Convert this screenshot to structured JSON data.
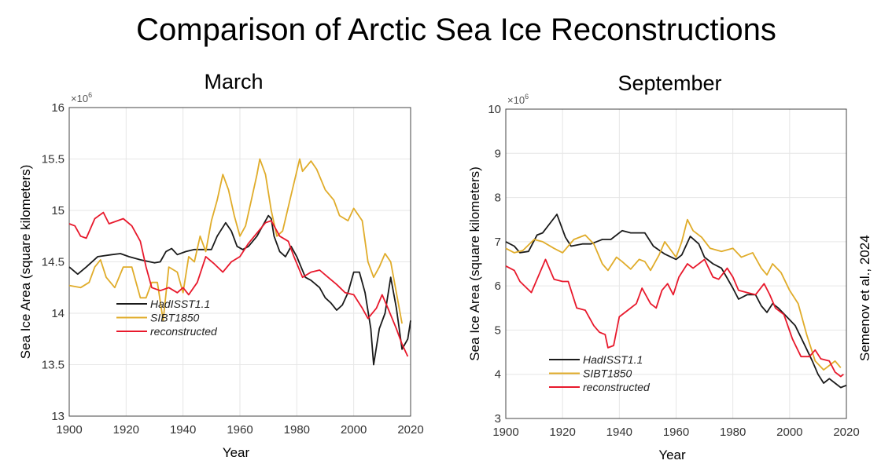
{
  "title": "Comparison of Arctic Sea Ice Reconstructions",
  "credit": "Semenov et al., 2024",
  "colors": {
    "HadISST1.1": "#1a1a1a",
    "SIBT1850": "#e0ac2a",
    "reconstructed": "#e8192c",
    "grid": "#e6e6e6"
  },
  "chart_data": [
    {
      "type": "line",
      "title": "March",
      "xlabel": "Year",
      "ylabel": "Sea Ice Area (square kilometers)",
      "y_multiplier": "×10^6",
      "xlim": [
        1900,
        2020
      ],
      "ylim": [
        13,
        16
      ],
      "xticks": [
        1900,
        1920,
        1940,
        1960,
        1980,
        2000,
        2020
      ],
      "yticks": [
        13,
        13.5,
        14,
        14.5,
        15,
        15.5,
        16
      ],
      "grid": true,
      "legend": "bottom-left",
      "series": [
        {
          "name": "HadISST1.1",
          "x": [
            1900,
            1903,
            1906,
            1910,
            1915,
            1918,
            1921,
            1925,
            1930,
            1932,
            1934,
            1936,
            1938,
            1941,
            1944,
            1950,
            1952,
            1955,
            1957,
            1959,
            1961,
            1963,
            1966,
            1968,
            1970,
            1971,
            1972,
            1974,
            1976,
            1978,
            1980,
            1983,
            1985,
            1988,
            1990,
            1992,
            1994,
            1996,
            1998,
            2000,
            2002,
            2004,
            2006,
            2007,
            2009,
            2011,
            2013,
            2015,
            2017,
            2019,
            2020
          ],
          "y": [
            14.45,
            14.38,
            14.45,
            14.55,
            14.57,
            14.58,
            14.55,
            14.52,
            14.49,
            14.5,
            14.6,
            14.63,
            14.57,
            14.6,
            14.62,
            14.62,
            14.75,
            14.88,
            14.8,
            14.65,
            14.62,
            14.65,
            14.75,
            14.85,
            14.95,
            14.92,
            14.75,
            14.6,
            14.55,
            14.65,
            14.55,
            14.35,
            14.32,
            14.25,
            14.15,
            14.1,
            14.03,
            14.08,
            14.2,
            14.4,
            14.4,
            14.2,
            13.85,
            13.5,
            13.85,
            14.0,
            14.35,
            14.05,
            13.65,
            13.75,
            13.93
          ]
        },
        {
          "name": "SIBT1850",
          "x": [
            1900,
            1904,
            1907,
            1909,
            1911,
            1913,
            1916,
            1919,
            1922,
            1925,
            1927,
            1929,
            1931,
            1933,
            1935,
            1938,
            1940,
            1942,
            1944,
            1946,
            1948,
            1950,
            1952,
            1954,
            1956,
            1958,
            1960,
            1962,
            1964,
            1966,
            1967,
            1969,
            1971,
            1973,
            1975,
            1978,
            1981,
            1982,
            1985,
            1987,
            1990,
            1993,
            1995,
            1998,
            2000,
            2003,
            2005,
            2007,
            2009,
            2011,
            2013,
            2015,
            2017
          ],
          "y": [
            14.27,
            14.25,
            14.3,
            14.45,
            14.52,
            14.35,
            14.25,
            14.45,
            14.45,
            14.15,
            14.15,
            14.3,
            14.3,
            13.93,
            14.45,
            14.4,
            14.2,
            14.55,
            14.5,
            14.75,
            14.6,
            14.9,
            15.1,
            15.35,
            15.2,
            14.95,
            14.75,
            14.85,
            15.1,
            15.35,
            15.5,
            15.35,
            15.0,
            14.75,
            14.8,
            15.15,
            15.5,
            15.38,
            15.48,
            15.4,
            15.2,
            15.1,
            14.95,
            14.9,
            15.02,
            14.9,
            14.5,
            14.35,
            14.45,
            14.58,
            14.5,
            14.2,
            13.9
          ]
        },
        {
          "name": "reconstructed",
          "x": [
            1900,
            1902,
            1904,
            1906,
            1909,
            1912,
            1914,
            1917,
            1919,
            1922,
            1925,
            1927,
            1929,
            1932,
            1935,
            1938,
            1940,
            1942,
            1945,
            1948,
            1951,
            1954,
            1957,
            1960,
            1963,
            1966,
            1969,
            1971,
            1974,
            1977,
            1979,
            1982,
            1985,
            1988,
            1991,
            1994,
            1997,
            2000,
            2003,
            2005,
            2008,
            2010,
            2012,
            2015,
            2017,
            2019
          ],
          "y": [
            14.87,
            14.85,
            14.75,
            14.73,
            14.92,
            14.98,
            14.87,
            14.9,
            14.92,
            14.85,
            14.7,
            14.45,
            14.25,
            14.22,
            14.25,
            14.2,
            14.25,
            14.18,
            14.3,
            14.55,
            14.48,
            14.4,
            14.5,
            14.55,
            14.68,
            14.78,
            14.88,
            14.9,
            14.75,
            14.7,
            14.55,
            14.35,
            14.4,
            14.42,
            14.35,
            14.28,
            14.2,
            14.18,
            14.05,
            13.95,
            14.05,
            14.18,
            14.05,
            13.85,
            13.7,
            13.58
          ]
        }
      ]
    },
    {
      "type": "line",
      "title": "September",
      "xlabel": "Year",
      "ylabel": "Sea Ice Area (square kilometers)",
      "y_multiplier": "×10^6",
      "xlim": [
        1900,
        2020
      ],
      "ylim": [
        3,
        10
      ],
      "xticks": [
        1900,
        1920,
        1940,
        1960,
        1980,
        2000,
        2020
      ],
      "yticks": [
        3,
        4,
        5,
        6,
        7,
        8,
        9,
        10
      ],
      "grid": true,
      "legend": "bottom-left",
      "series": [
        {
          "name": "HadISST1.1",
          "x": [
            1900,
            1903,
            1905,
            1908,
            1911,
            1913,
            1916,
            1918,
            1921,
            1923,
            1927,
            1930,
            1934,
            1937,
            1941,
            1944,
            1949,
            1952,
            1956,
            1960,
            1962,
            1965,
            1968,
            1970,
            1973,
            1976,
            1980,
            1982,
            1985,
            1988,
            1990,
            1992,
            1994,
            1996,
            1999,
            2002,
            2005,
            2008,
            2010,
            2012,
            2014,
            2016,
            2018,
            2020
          ],
          "y": [
            7.0,
            6.9,
            6.75,
            6.78,
            7.15,
            7.2,
            7.45,
            7.62,
            7.1,
            6.9,
            6.95,
            6.95,
            7.05,
            7.05,
            7.25,
            7.2,
            7.2,
            6.9,
            6.72,
            6.6,
            6.7,
            7.12,
            6.95,
            6.65,
            6.5,
            6.4,
            5.95,
            5.7,
            5.8,
            5.8,
            5.55,
            5.4,
            5.6,
            5.5,
            5.3,
            5.1,
            4.7,
            4.3,
            4.0,
            3.8,
            3.9,
            3.8,
            3.7,
            3.75
          ]
        },
        {
          "name": "SIBT1850",
          "x": [
            1900,
            1903,
            1906,
            1910,
            1913,
            1917,
            1920,
            1924,
            1928,
            1931,
            1934,
            1936,
            1939,
            1941,
            1944,
            1947,
            1949,
            1951,
            1954,
            1956,
            1960,
            1962,
            1964,
            1966,
            1969,
            1972,
            1976,
            1980,
            1983,
            1987,
            1990,
            1992,
            1994,
            1997,
            2000,
            2003,
            2006,
            2009,
            2012,
            2014,
            2016,
            2018
          ],
          "y": [
            6.85,
            6.75,
            6.8,
            7.05,
            7.0,
            6.85,
            6.75,
            7.05,
            7.15,
            6.95,
            6.5,
            6.35,
            6.65,
            6.55,
            6.38,
            6.6,
            6.55,
            6.35,
            6.7,
            7.0,
            6.65,
            7.0,
            7.5,
            7.25,
            7.1,
            6.85,
            6.78,
            6.85,
            6.65,
            6.75,
            6.4,
            6.25,
            6.5,
            6.3,
            5.9,
            5.6,
            4.9,
            4.3,
            4.1,
            4.2,
            4.3,
            4.15
          ]
        },
        {
          "name": "reconstructed",
          "x": [
            1900,
            1903,
            1905,
            1909,
            1912,
            1914,
            1917,
            1920,
            1922,
            1925,
            1928,
            1931,
            1933,
            1935,
            1936,
            1938,
            1940,
            1943,
            1946,
            1948,
            1951,
            1953,
            1955,
            1957,
            1959,
            1961,
            1964,
            1966,
            1970,
            1973,
            1975,
            1978,
            1980,
            1982,
            1985,
            1988,
            1991,
            1993,
            1995,
            1998,
            2001,
            2004,
            2007,
            2009,
            2011,
            2014,
            2016,
            2018,
            2019
          ],
          "y": [
            6.45,
            6.35,
            6.1,
            5.85,
            6.3,
            6.6,
            6.15,
            6.1,
            6.1,
            5.5,
            5.45,
            5.1,
            4.95,
            4.9,
            4.6,
            4.65,
            5.3,
            5.45,
            5.6,
            5.95,
            5.6,
            5.5,
            5.9,
            6.05,
            5.8,
            6.2,
            6.5,
            6.4,
            6.6,
            6.2,
            6.15,
            6.4,
            6.2,
            5.9,
            5.85,
            5.8,
            6.05,
            5.8,
            5.5,
            5.35,
            4.8,
            4.4,
            4.4,
            4.55,
            4.35,
            4.3,
            4.05,
            3.95,
            4.0
          ]
        }
      ]
    }
  ]
}
